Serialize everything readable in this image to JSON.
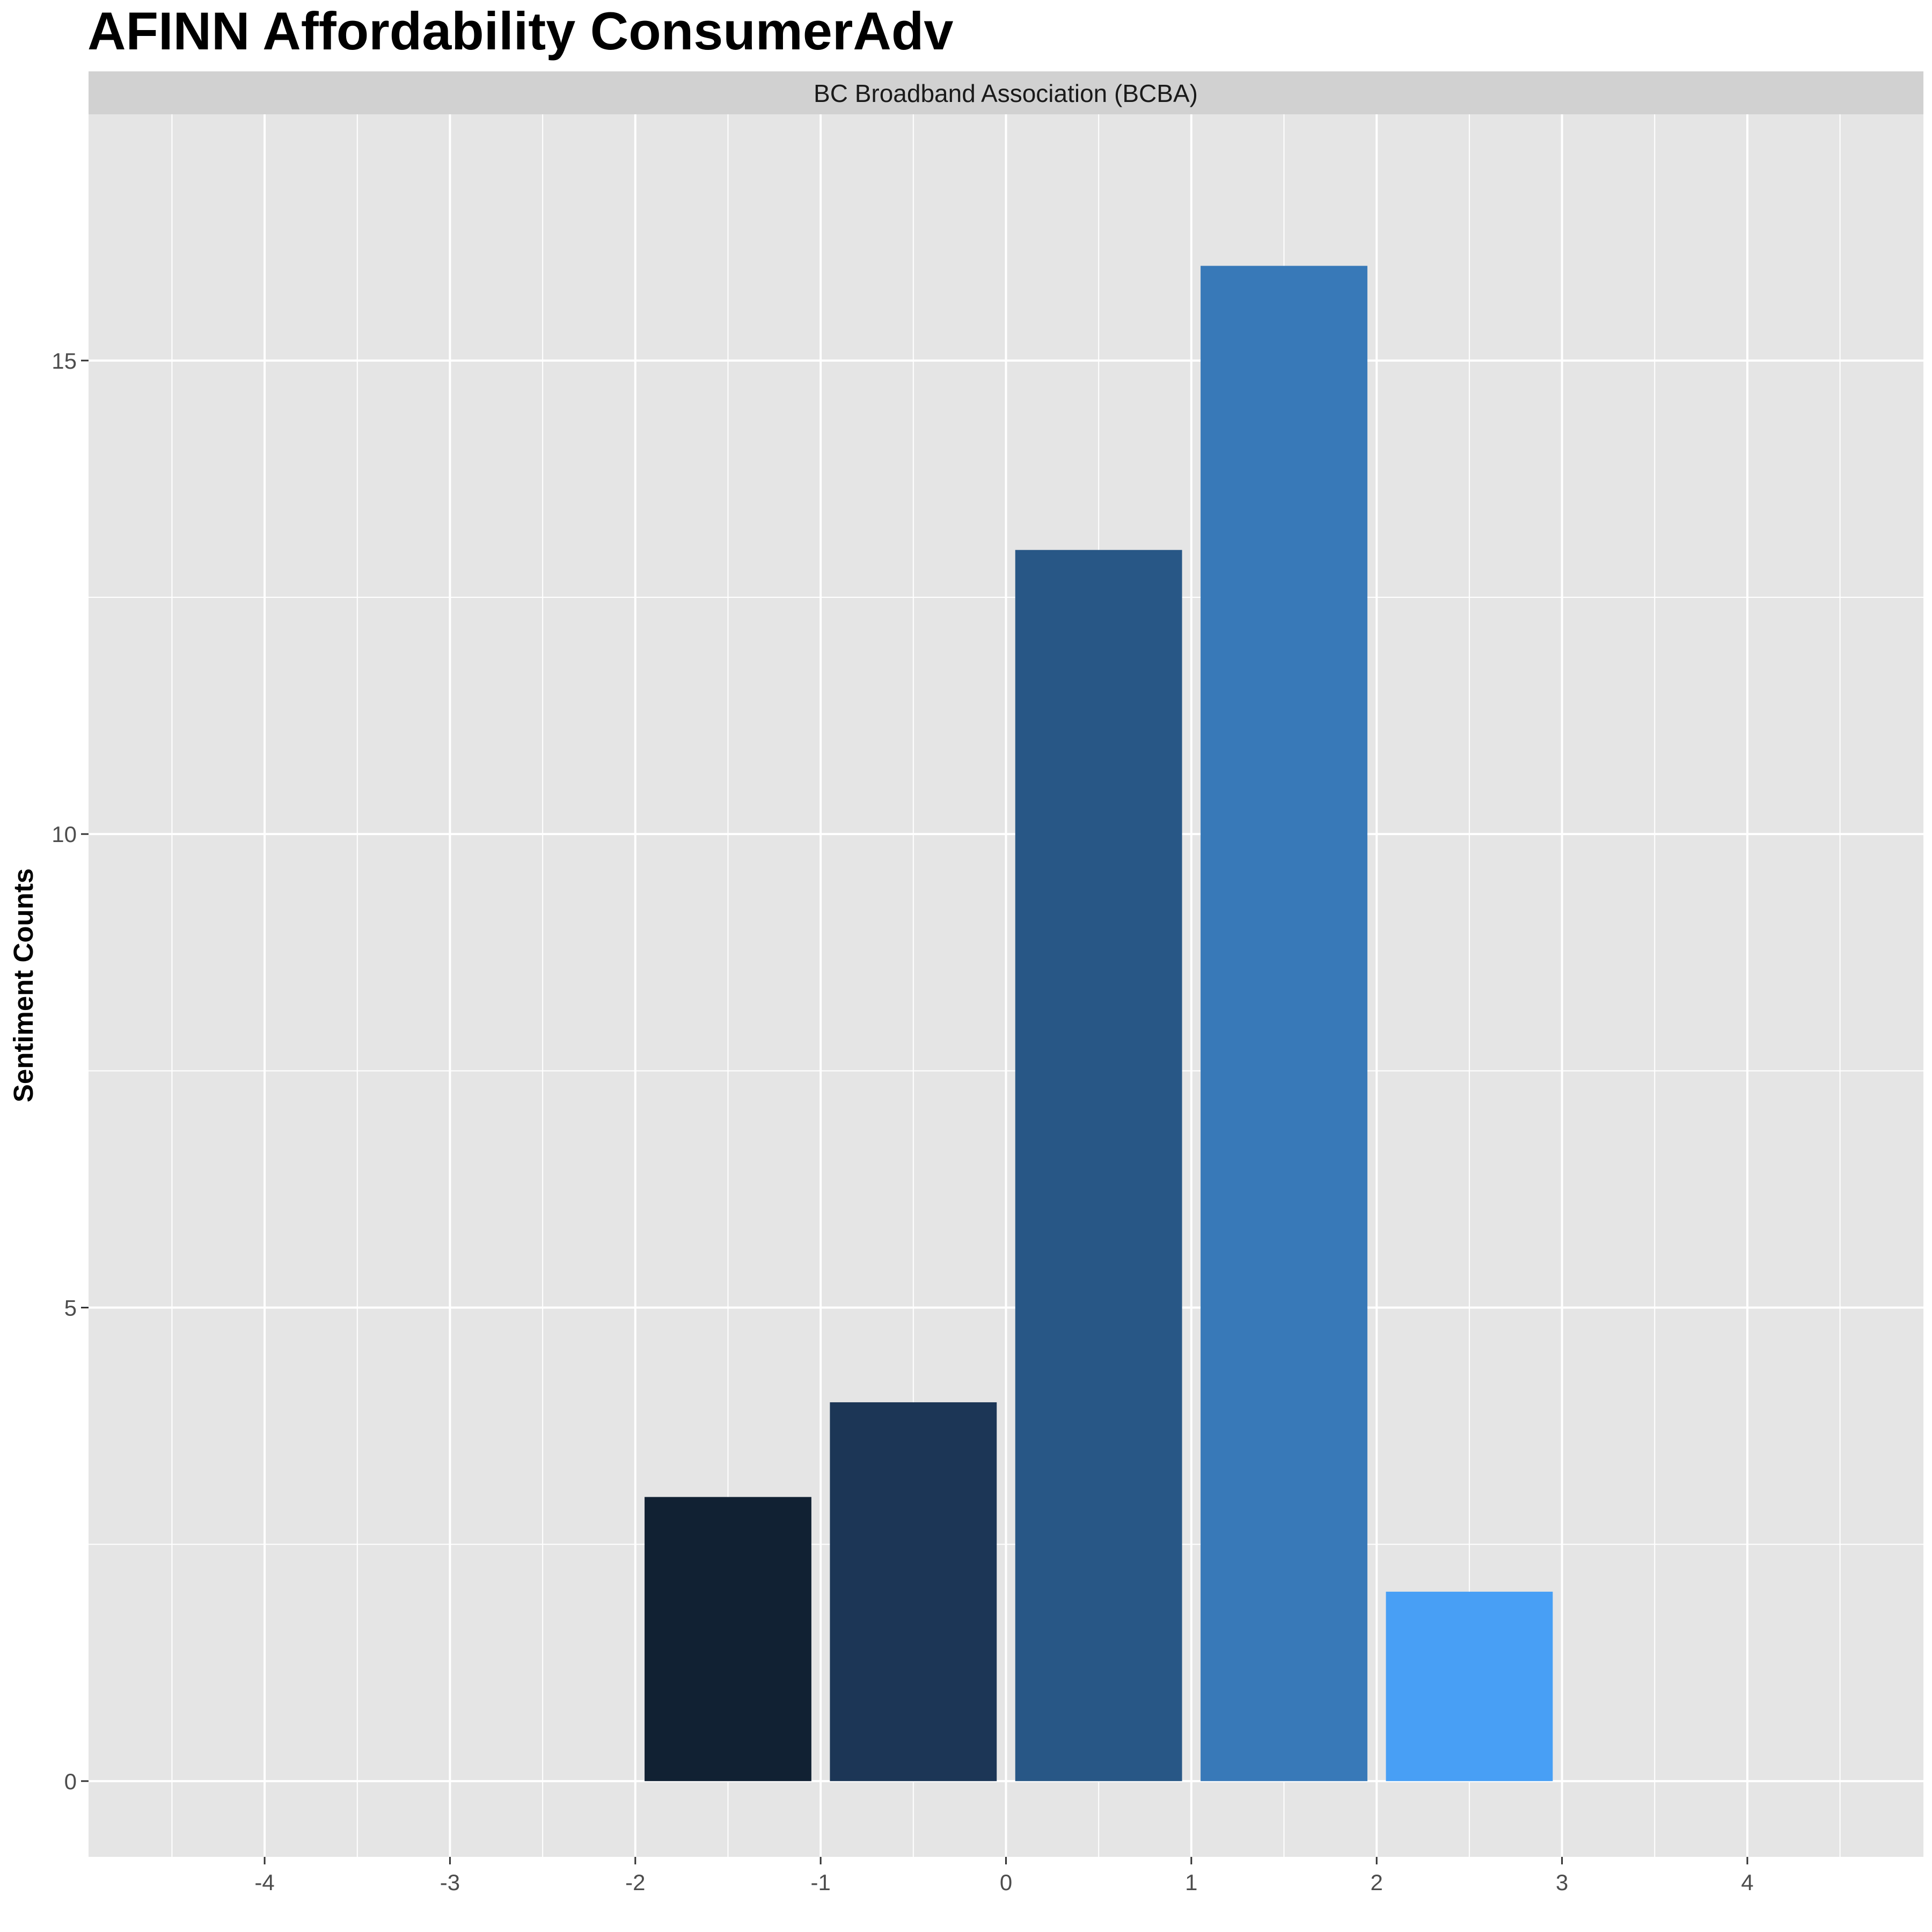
{
  "chart_data": {
    "type": "bar",
    "title": "AFINN Affordability ConsumerAdv",
    "facet_label": "BC Broadband Association (BCBA)",
    "xlabel": "",
    "ylabel": "Sentiment Counts",
    "x_ticks": [
      -4,
      -3,
      -2,
      -1,
      0,
      1,
      2,
      3,
      4
    ],
    "y_ticks": [
      0,
      5,
      10,
      15
    ],
    "xlim": [
      -4.95,
      4.95
    ],
    "ylim": [
      -0.8,
      17.6
    ],
    "grid": true,
    "legend": "none",
    "bars": [
      {
        "x_from": -2,
        "x_to": -1,
        "value": 3,
        "color": "#112133"
      },
      {
        "x_from": -1,
        "x_to": 0,
        "value": 4,
        "color": "#1c3656"
      },
      {
        "x_from": 0,
        "x_to": 1,
        "value": 13,
        "color": "#285786"
      },
      {
        "x_from": 1,
        "x_to": 2,
        "value": 16,
        "color": "#3879b8"
      },
      {
        "x_from": 2,
        "x_to": 3,
        "value": 2,
        "color": "#489ff5"
      }
    ],
    "colors": {
      "panel_background": "#e5e5e5",
      "grid": "#ffffff",
      "strip_background": "#d1d1d1"
    }
  }
}
